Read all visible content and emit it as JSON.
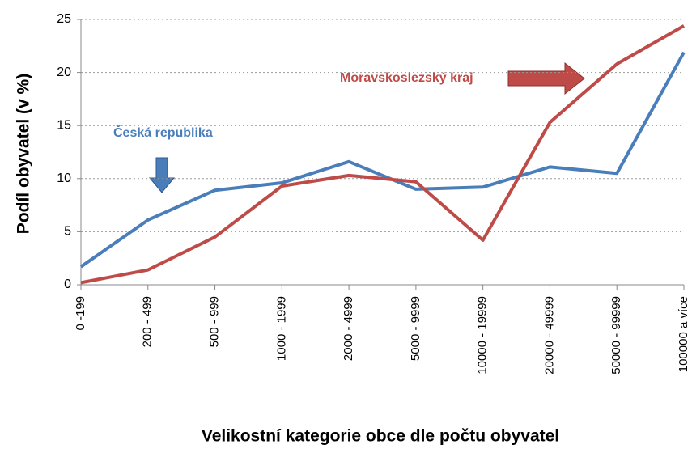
{
  "chart_data": {
    "type": "line",
    "xlabel": "Velikostní kategorie obce dle počtu obyvatel",
    "ylabel": "Podíl obyvatel (v %)",
    "categories": [
      "0 -199",
      "200 - 499",
      "500 - 999",
      "1000 - 1999",
      "2000 - 4999",
      "5000 - 9999",
      "10000 - 19999",
      "20000 - 49999",
      "50000 - 99999",
      "100000 a více"
    ],
    "series": [
      {
        "name": "Česká republika",
        "color": "#4a7ebb",
        "values": [
          1.7,
          6.1,
          8.9,
          9.6,
          11.6,
          9.0,
          9.2,
          11.1,
          10.5,
          21.9
        ]
      },
      {
        "name": "Moravskoslezský kraj",
        "color": "#be4b48",
        "values": [
          0.2,
          1.4,
          4.5,
          9.3,
          10.3,
          9.7,
          4.2,
          15.3,
          20.8,
          24.4
        ]
      }
    ],
    "ylim": [
      0,
      25
    ],
    "yticks": [
      0,
      5,
      10,
      15,
      20,
      25
    ],
    "grid": true
  }
}
